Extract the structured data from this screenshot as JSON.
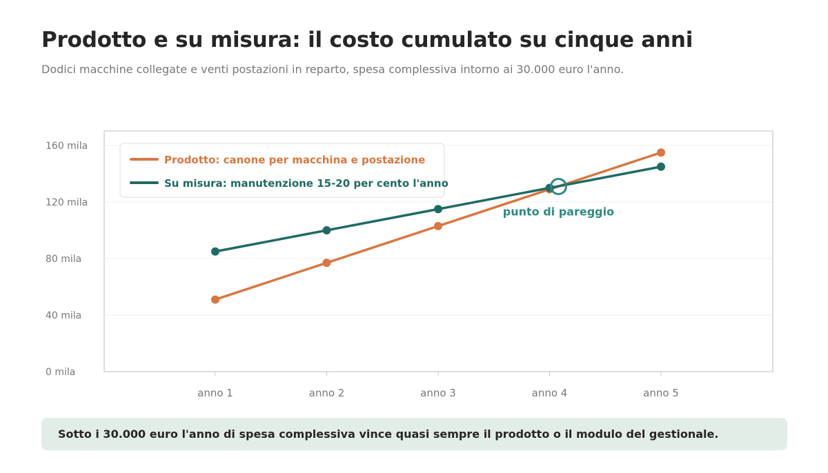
{
  "header": {
    "title": "Prodotto e su misura: il costo cumulato su cinque anni",
    "subtitle": "Dodici macchine collegate e venti postazioni in reparto, spesa complessiva intorno ai 30.000 euro l'anno."
  },
  "chart_data": {
    "type": "line",
    "categories": [
      "anno 1",
      "anno 2",
      "anno 3",
      "anno 4",
      "anno 5"
    ],
    "y_ticks": [
      0,
      40,
      80,
      120,
      160
    ],
    "y_tick_suffix": " mila",
    "ylim": [
      0,
      160
    ],
    "grid": true,
    "legend_position": "top-left",
    "series": [
      {
        "name": "Prodotto: canone per macchina e postazione",
        "color": "#d9773f",
        "values": [
          51,
          77,
          103,
          129,
          155
        ]
      },
      {
        "name": "Su misura: manutenzione 15-20 per cento l'anno",
        "color": "#1f6b63",
        "values": [
          85,
          100,
          115,
          130,
          145
        ]
      }
    ],
    "annotation": {
      "label": "punto di pareggio",
      "x": 4.08,
      "y": 131,
      "color": "#2d8a80"
    }
  },
  "footer": {
    "note": "Sotto i 30.000 euro l'anno di spesa complessiva vince quasi sempre il prodotto o il modulo del gestionale."
  }
}
